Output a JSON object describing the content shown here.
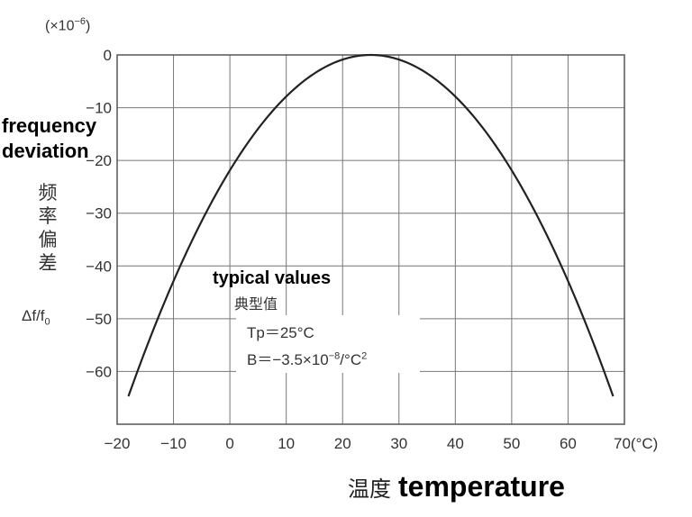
{
  "chart_data": {
    "type": "line",
    "x_ticks": [
      "−20",
      "−10",
      "0",
      "10",
      "20",
      "30",
      "40",
      "50",
      "60",
      "70(°C)"
    ],
    "y_ticks": [
      "0",
      "−10",
      "−20",
      "−30",
      "−40",
      "−50",
      "−60"
    ],
    "xlim": [
      -20,
      70
    ],
    "ylim": [
      -70,
      0
    ],
    "grid": true,
    "y_multiplier": {
      "prefix": "(×10",
      "power": "−6",
      "suffix": ")"
    },
    "ylabel_en": "frequency deviation",
    "ylabel_cn": [
      "频",
      "率",
      "偏",
      "差"
    ],
    "ylabel_symbol": {
      "main": "Δf/f",
      "sub": "0"
    },
    "xlabel_cn": "温度",
    "xlabel_en": "temperature",
    "annotation": {
      "title_en": "typical values",
      "title_cn": "典型值",
      "tp": "Tp＝25°C",
      "b_text": "B＝−3.5×10",
      "b_power": "−8",
      "b_unit": "/°C",
      "b_unit_power": "2"
    },
    "series": [
      {
        "turnover_temp": 25,
        "coefficient": -0.035,
        "x_range": [
          -18,
          68
        ],
        "x": [
          -18,
          -10,
          0,
          10,
          20,
          25,
          30,
          40,
          50,
          60,
          68
        ],
        "y": [
          -64.7,
          -42.9,
          -21.9,
          -7.9,
          -0.9,
          0,
          -0.9,
          -7.9,
          -21.9,
          -42.9,
          -64.7
        ]
      }
    ]
  }
}
